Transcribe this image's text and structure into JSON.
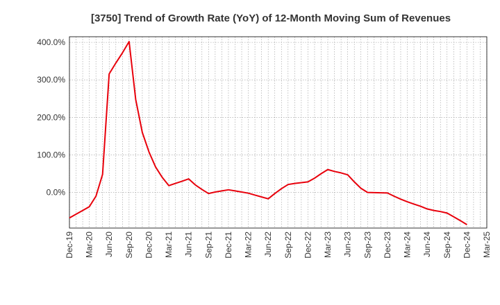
{
  "chart_data": {
    "type": "line",
    "title": "[3750]  Trend of Growth Rate (YoY) of 12-Month Moving Sum of Revenues",
    "xlabel": "",
    "ylabel": "",
    "ylim": [
      -95,
      415
    ],
    "yticks": [
      0,
      100,
      200,
      300,
      400
    ],
    "ytick_labels": [
      "0.0%",
      "100.0%",
      "200.0%",
      "300.0%",
      "400.0%"
    ],
    "xtick_labels": [
      "Dec-19",
      "Mar-20",
      "Jun-20",
      "Sep-20",
      "Dec-20",
      "Mar-21",
      "Jun-21",
      "Sep-21",
      "Dec-21",
      "Mar-22",
      "Jun-22",
      "Sep-22",
      "Dec-22",
      "Mar-23",
      "Jun-23",
      "Sep-23",
      "Dec-23",
      "Mar-24",
      "Jun-24",
      "Sep-24",
      "Dec-24",
      "Mar-25"
    ],
    "x_range": [
      "2019-12",
      "2025-03"
    ],
    "grid": true,
    "line_color": "#e8000b",
    "series": [
      {
        "x": [
          "2019-12",
          "2020-01",
          "2020-02",
          "2020-03",
          "2020-04",
          "2020-05",
          "2020-06",
          "2020-07",
          "2020-08",
          "2020-09",
          "2020-10",
          "2020-11",
          "2020-12",
          "2021-01",
          "2021-02",
          "2021-03",
          "2021-04",
          "2021-05",
          "2021-06",
          "2021-07",
          "2021-08",
          "2021-09",
          "2021-10",
          "2021-11",
          "2021-12",
          "2022-01",
          "2022-02",
          "2022-03",
          "2022-04",
          "2022-05",
          "2022-06",
          "2022-07",
          "2022-08",
          "2022-09",
          "2022-10",
          "2022-11",
          "2022-12",
          "2023-01",
          "2023-02",
          "2023-03",
          "2023-04",
          "2023-05",
          "2023-06",
          "2023-07",
          "2023-08",
          "2023-09",
          "2023-10",
          "2023-11",
          "2023-12",
          "2024-01",
          "2024-02",
          "2024-03",
          "2024-04",
          "2024-05",
          "2024-06",
          "2024-07",
          "2024-08",
          "2024-09",
          "2024-10",
          "2024-11",
          "2024-12"
        ],
        "values": [
          -68,
          -58,
          -48,
          -38,
          -10,
          48,
          316,
          345,
          372,
          402,
          248,
          160,
          108,
          68,
          40,
          18,
          24,
          30,
          36,
          20,
          8,
          -3,
          1,
          4,
          7,
          4,
          1,
          -2,
          -7,
          -12,
          -17,
          -3,
          10,
          21,
          24,
          26,
          28,
          38,
          50,
          61,
          56,
          52,
          47,
          28,
          11,
          0,
          -0.5,
          -1,
          -1.5,
          -10,
          -18,
          -25,
          -31,
          -37,
          -44,
          -48,
          -51,
          -55,
          -65,
          -75,
          -86
        ]
      }
    ]
  }
}
